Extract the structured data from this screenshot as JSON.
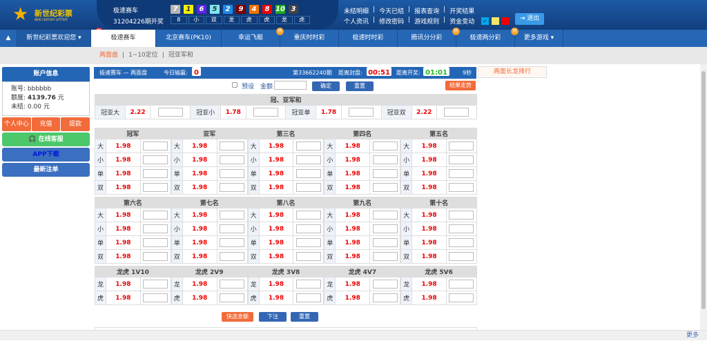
{
  "header": {
    "logo_cn": "新世纪彩票",
    "logo_en": "NEW CENTURY LOTTERY",
    "lottery": "极速赛车",
    "issue": "31204226期开奖",
    "balls": [
      {
        "n": "7",
        "c": "#b5b5b5"
      },
      {
        "n": "1",
        "c": "#f0f000"
      },
      {
        "n": "6",
        "c": "#5b22e6"
      },
      {
        "n": "5",
        "c": "#7fe6f0"
      },
      {
        "n": "2",
        "c": "#1e88e5"
      },
      {
        "n": "9",
        "c": "#7a0000"
      },
      {
        "n": "4",
        "c": "#f57200"
      },
      {
        "n": "8",
        "c": "#f00000"
      },
      {
        "n": "10",
        "c": "#22aa22"
      },
      {
        "n": "3",
        "c": "#444444"
      }
    ],
    "results": [
      "8",
      "小",
      "双",
      "龙",
      "虎",
      "虎",
      "龙",
      "虎"
    ],
    "links1": [
      "未结明细",
      "|",
      "今天已结",
      "|",
      "报表查询",
      "|",
      "开奖结果"
    ],
    "links2": [
      "个人资讯",
      "|",
      "修改密码",
      "|",
      "游戏规则",
      "|",
      "资金变动"
    ],
    "theme_colors": [
      "#00a8e8",
      "#f5e66a",
      "#f00000"
    ],
    "logout": "退出"
  },
  "nav": {
    "welcome": "新世纪彩票欢迎您",
    "new_badge": "新",
    "hot_badge": "热",
    "tabs": [
      "极速赛车",
      "北京赛车(PK10)",
      "幸运飞艇",
      "重庆时时彩",
      "极速时时彩",
      "腾讯分分彩",
      "极速两分彩",
      "更多游戏"
    ],
    "active": "极速赛车"
  },
  "subnav": [
    "两面盘",
    "|",
    "1~10定位",
    "|",
    "冠亚军和"
  ],
  "sidebar": {
    "title": "账户信息",
    "account_label": "账号:",
    "account": "bbbbbb",
    "credit_label": "额度:",
    "credit": "4139.76",
    "unpaid_label": "未结:",
    "unpaid": "0.00",
    "unit": "元",
    "buttons": [
      "个人中心",
      "充值",
      "提款"
    ],
    "service": "在线客服",
    "app": "APP下载",
    "latest": "最新注单"
  },
  "main": {
    "title": "极速赛车 — 两面盘",
    "today_label": "今日输赢:",
    "today": "0",
    "period": "第33662240期",
    "close_label": "距离封盘:",
    "close": "00:51",
    "open_label": "距离开奖:",
    "open": "01:01",
    "countdown": "9秒",
    "preset": "预设",
    "amount": "金额",
    "confirm": "确定",
    "reset": "重置",
    "trend": "结果走势",
    "sum_title": "冠、亚军和",
    "sum": [
      {
        "l": "冠亚大",
        "o": "2.22"
      },
      {
        "l": "冠亚小",
        "o": "1.78"
      },
      {
        "l": "冠亚单",
        "o": "1.78"
      },
      {
        "l": "冠亚双",
        "o": "2.22"
      }
    ],
    "groups1": [
      {
        "t": "冠军"
      },
      {
        "t": "亚军"
      },
      {
        "t": "第三名"
      },
      {
        "t": "第四名"
      },
      {
        "t": "第五名"
      }
    ],
    "groups2": [
      {
        "t": "第六名"
      },
      {
        "t": "第七名"
      },
      {
        "t": "第八名"
      },
      {
        "t": "第九名"
      },
      {
        "t": "第十名"
      }
    ],
    "groups3": [
      {
        "t": "龙虎 1V10"
      },
      {
        "t": "龙虎 2V9"
      },
      {
        "t": "龙虎 3V8"
      },
      {
        "t": "龙虎 4V7"
      },
      {
        "t": "龙虎 5V6"
      }
    ],
    "rows_bs": [
      "大",
      "小",
      "单",
      "双"
    ],
    "rows_dt": [
      "龙",
      "虎"
    ],
    "odds": "1.98",
    "quick": "快选金额",
    "bet": "下注",
    "reset2": "重置"
  },
  "right": {
    "dragon_rank": "两面长龙排行"
  },
  "footer": {
    "more": "更多"
  }
}
